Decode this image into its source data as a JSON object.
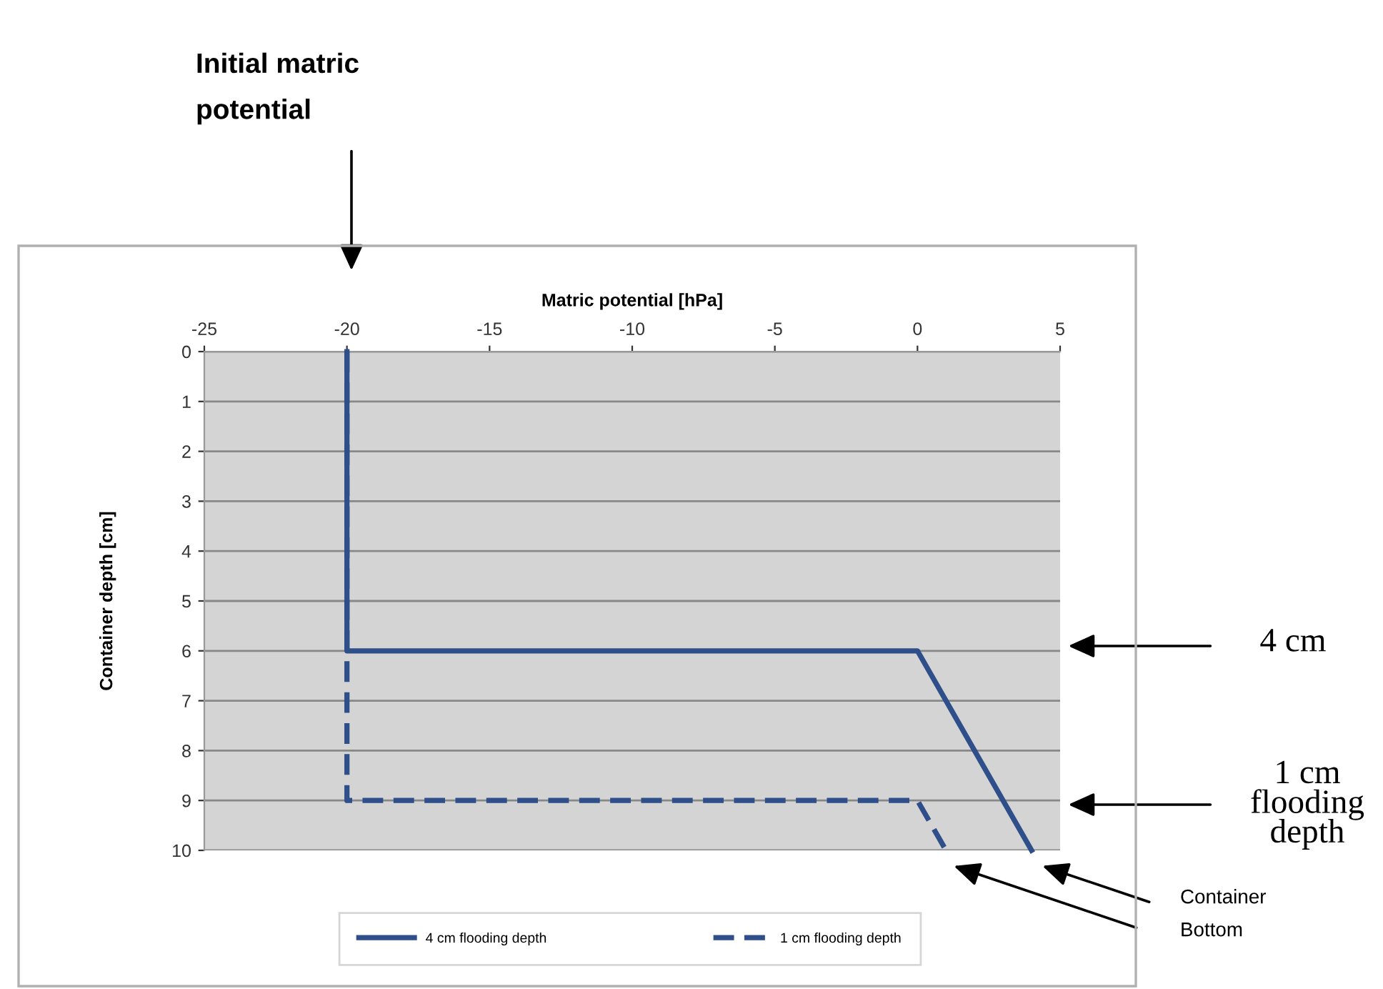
{
  "chart_data": {
    "type": "line",
    "xlabel": "Matric potential [hPa]",
    "ylabel": "Container depth [cm]",
    "xlim": [
      -25,
      5
    ],
    "xticks": [
      -25,
      -20,
      -15,
      -10,
      -5,
      0,
      5
    ],
    "ylim": [
      10,
      0
    ],
    "yticks": [
      0,
      1,
      2,
      3,
      4,
      5,
      6,
      7,
      8,
      9,
      10
    ],
    "grid": "y",
    "legend": "bottom",
    "series": [
      {
        "name": "4 cm flooding depth",
        "color": "#2f4f8a",
        "line_style": "solid",
        "x": [
          -20,
          -20,
          0,
          4
        ],
        "values": [
          0,
          6,
          6,
          10
        ]
      },
      {
        "name": "1 cm flooding depth",
        "color": "#2f4f8a",
        "line_style": "dashed",
        "x": [
          -20,
          -20,
          0,
          1
        ],
        "values": [
          0,
          9,
          9,
          10
        ]
      }
    ],
    "annotations": [
      "Initial matric potential",
      "4 cm",
      "1 cm flooding depth",
      "Container Bottom"
    ]
  }
}
